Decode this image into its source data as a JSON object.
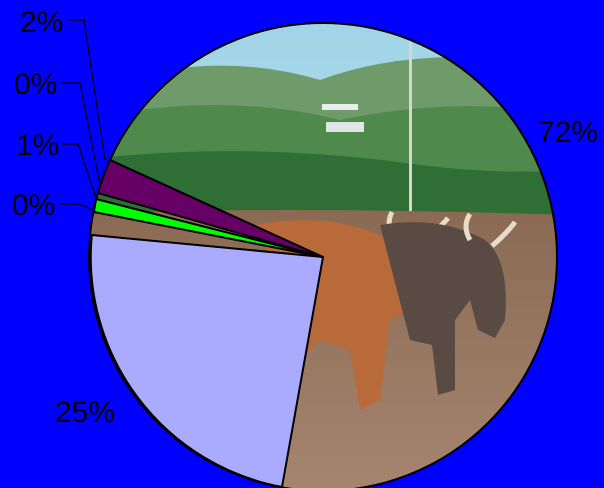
{
  "chart_data": {
    "type": "pie",
    "slices": [
      {
        "label": "72%",
        "value": 72,
        "color": "photo"
      },
      {
        "label": "25%",
        "value": 25,
        "color": "#aaaaff"
      },
      {
        "label": "0%",
        "value": 0,
        "color": "#00ff00"
      },
      {
        "label": "1%",
        "value": 1,
        "color": "#00ff00"
      },
      {
        "label": "0%",
        "value": 0,
        "color": "#00ff00"
      },
      {
        "label": "2%",
        "value": 2,
        "color": "#660066"
      }
    ],
    "background_image": "farmer plowing field with two oxen",
    "legend": "none"
  },
  "colors": {
    "background": "#0000ff",
    "label_text": "#000000"
  }
}
